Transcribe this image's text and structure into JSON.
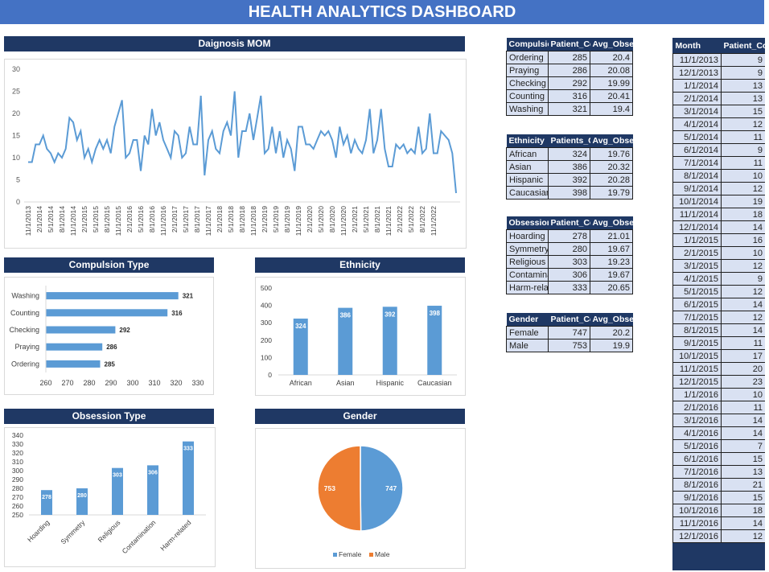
{
  "dashboard_title": "HEALTH ANALYTICS DASHBOARD",
  "colors": {
    "title_bar": "#4472c4",
    "header": "#1f3864",
    "blue": "#5b9bd5",
    "orange": "#ed7d31",
    "cell": "#d9e1f2"
  },
  "panels": {
    "diagnosis": "Daignosis MOM",
    "compulsion": "Compulsion Type",
    "ethnicity": "Ethnicity",
    "obsession": "Obsession Type",
    "gender": "Gender"
  },
  "chart_data": [
    {
      "type": "line",
      "title": "Daignosis MOM",
      "ylim": [
        0,
        30
      ],
      "yticks": [
        0,
        5,
        10,
        15,
        20,
        25,
        30
      ],
      "xtick_labels": [
        "11/1/2013",
        "2/1/2014",
        "5/1/2014",
        "8/1/2014",
        "11/1/2014",
        "2/1/2015",
        "5/1/2015",
        "8/1/2015",
        "11/1/2015",
        "2/1/2016",
        "5/1/2016",
        "8/1/2016",
        "11/1/2016",
        "2/1/2017",
        "5/1/2017",
        "8/1/2017",
        "11/1/2017",
        "2/1/2018",
        "5/1/2018",
        "8/1/2018",
        "11/1/2018",
        "2/1/2019",
        "5/1/2019",
        "8/1/2019",
        "11/1/2019",
        "2/1/2020",
        "5/1/2020",
        "8/1/2020",
        "11/1/2020",
        "2/1/2021",
        "5/1/2021",
        "8/1/2021",
        "11/1/2021",
        "2/1/2022",
        "5/1/2022",
        "8/1/2022",
        "11/1/2022"
      ],
      "values": [
        9,
        9,
        13,
        13,
        15,
        12,
        11,
        9,
        11,
        10,
        12,
        19,
        18,
        14,
        16,
        10,
        12,
        9,
        12,
        14,
        12,
        14,
        11,
        17,
        20,
        23,
        10,
        11,
        14,
        14,
        7,
        15,
        13,
        21,
        15,
        18,
        14,
        12,
        10,
        16,
        15,
        10,
        11,
        17,
        13,
        13,
        24,
        6,
        14,
        16,
        12,
        11,
        16,
        18,
        15,
        25,
        10,
        16,
        16,
        20,
        14,
        19,
        24,
        11,
        12,
        17,
        11,
        16,
        10,
        14,
        12,
        7,
        17,
        17,
        13,
        13,
        12,
        14,
        16,
        15,
        16,
        14,
        10,
        17,
        13,
        15,
        11,
        14,
        12,
        11,
        14,
        21,
        11,
        14,
        21,
        12,
        8,
        8,
        13,
        12,
        13,
        11,
        12,
        11,
        17,
        11,
        12,
        20,
        11,
        11,
        16,
        15,
        14,
        11,
        2
      ],
      "grid": false
    },
    {
      "type": "bar",
      "orientation": "horizontal",
      "title": "Compulsion Type",
      "categories": [
        "Ordering",
        "Praying",
        "Checking",
        "Counting",
        "Washing"
      ],
      "values": [
        285,
        286,
        292,
        316,
        321
      ],
      "xlim": [
        260,
        330
      ],
      "xticks": [
        260,
        270,
        280,
        290,
        300,
        310,
        320,
        330
      ]
    },
    {
      "type": "bar",
      "title": "Ethnicity",
      "categories": [
        "African",
        "Asian",
        "Hispanic",
        "Caucasian"
      ],
      "values": [
        324,
        386,
        392,
        398
      ],
      "ylim": [
        0,
        500
      ],
      "yticks": [
        0,
        100,
        200,
        300,
        400,
        500
      ]
    },
    {
      "type": "bar",
      "title": "Obsession Type",
      "categories": [
        "Hoarding",
        "Symmetry",
        "Religious",
        "Contamination",
        "Harm-related"
      ],
      "values": [
        278,
        280,
        303,
        306,
        333
      ],
      "ylim": [
        250,
        340
      ],
      "yticks": [
        250,
        260,
        270,
        280,
        290,
        300,
        310,
        320,
        330,
        340
      ]
    },
    {
      "type": "pie",
      "title": "Gender",
      "categories": [
        "Female",
        "Male"
      ],
      "values": [
        747,
        753
      ],
      "legend": "bottom"
    }
  ],
  "tables": {
    "compulsion": {
      "headers": [
        "Compulsion",
        "Patient_Count",
        "Avg_Obsession"
      ],
      "rows": [
        [
          "Ordering",
          "285",
          "20.4"
        ],
        [
          "Praying",
          "286",
          "20.08"
        ],
        [
          "Checking",
          "292",
          "19.99"
        ],
        [
          "Counting",
          "316",
          "20.41"
        ],
        [
          "Washing",
          "321",
          "19.4"
        ]
      ]
    },
    "ethnicity": {
      "headers": [
        "Ethnicity",
        "Patients_Count",
        "Avg_Obsession"
      ],
      "rows": [
        [
          "African",
          "324",
          "19.76"
        ],
        [
          "Asian",
          "386",
          "20.32"
        ],
        [
          "Hispanic",
          "392",
          "20.28"
        ],
        [
          "Caucasian",
          "398",
          "19.79"
        ]
      ]
    },
    "obsession": {
      "headers": [
        "Obsession",
        "Patient_Count",
        "Avg_Obsession"
      ],
      "rows": [
        [
          "Hoarding",
          "278",
          "21.01"
        ],
        [
          "Symmetry",
          "280",
          "19.67"
        ],
        [
          "Religious",
          "303",
          "19.23"
        ],
        [
          "Contamination",
          "306",
          "19.67"
        ],
        [
          "Harm-related",
          "333",
          "20.65"
        ]
      ]
    },
    "gender": {
      "headers": [
        "Gender",
        "Patient_Count",
        "Avg_Obsession"
      ],
      "rows": [
        [
          "Female",
          "747",
          "20.2"
        ],
        [
          "Male",
          "753",
          "19.9"
        ]
      ]
    },
    "monthly": {
      "headers": [
        "Month",
        "Patient_Count"
      ],
      "rows": [
        [
          "11/1/2013",
          "9"
        ],
        [
          "12/1/2013",
          "9"
        ],
        [
          "1/1/2014",
          "13"
        ],
        [
          "2/1/2014",
          "13"
        ],
        [
          "3/1/2014",
          "15"
        ],
        [
          "4/1/2014",
          "12"
        ],
        [
          "5/1/2014",
          "11"
        ],
        [
          "6/1/2014",
          "9"
        ],
        [
          "7/1/2014",
          "11"
        ],
        [
          "8/1/2014",
          "10"
        ],
        [
          "9/1/2014",
          "12"
        ],
        [
          "10/1/2014",
          "19"
        ],
        [
          "11/1/2014",
          "18"
        ],
        [
          "12/1/2014",
          "14"
        ],
        [
          "1/1/2015",
          "16"
        ],
        [
          "2/1/2015",
          "10"
        ],
        [
          "3/1/2015",
          "12"
        ],
        [
          "4/1/2015",
          "9"
        ],
        [
          "5/1/2015",
          "12"
        ],
        [
          "6/1/2015",
          "14"
        ],
        [
          "7/1/2015",
          "12"
        ],
        [
          "8/1/2015",
          "14"
        ],
        [
          "9/1/2015",
          "11"
        ],
        [
          "10/1/2015",
          "17"
        ],
        [
          "11/1/2015",
          "20"
        ],
        [
          "12/1/2015",
          "23"
        ],
        [
          "1/1/2016",
          "10"
        ],
        [
          "2/1/2016",
          "11"
        ],
        [
          "3/1/2016",
          "14"
        ],
        [
          "4/1/2016",
          "14"
        ],
        [
          "5/1/2016",
          "7"
        ],
        [
          "6/1/2016",
          "15"
        ],
        [
          "7/1/2016",
          "13"
        ],
        [
          "8/1/2016",
          "21"
        ],
        [
          "9/1/2016",
          "15"
        ],
        [
          "10/1/2016",
          "18"
        ],
        [
          "11/1/2016",
          "14"
        ],
        [
          "12/1/2016",
          "12"
        ]
      ]
    }
  }
}
